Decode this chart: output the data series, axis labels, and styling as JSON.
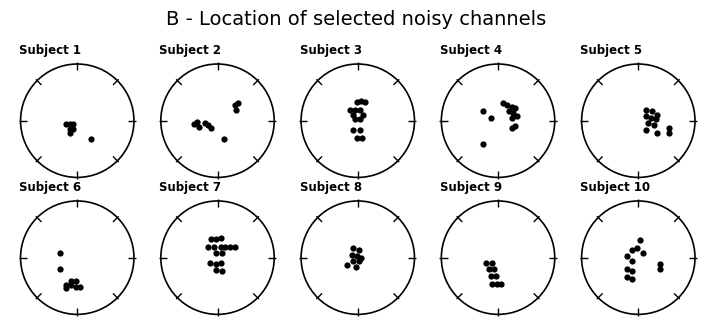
{
  "title": "B - Location of selected noisy channels",
  "title_fontsize": 14,
  "subjects": [
    "Subject 1",
    "Subject 2",
    "Subject 3",
    "Subject 4",
    "Subject 5",
    "Subject 6",
    "Subject 7",
    "Subject 8",
    "Subject 9",
    "Subject 10"
  ],
  "dots": [
    [
      [
        -0.18,
        -0.05
      ],
      [
        -0.12,
        -0.05
      ],
      [
        -0.12,
        -0.13
      ],
      [
        -0.07,
        -0.05
      ],
      [
        -0.07,
        -0.13
      ],
      [
        -0.12,
        -0.2
      ],
      [
        0.22,
        -0.3
      ]
    ],
    [
      [
        -0.38,
        -0.05
      ],
      [
        -0.33,
        -0.02
      ],
      [
        -0.3,
        -0.1
      ],
      [
        -0.2,
        -0.03
      ],
      [
        -0.15,
        -0.07
      ],
      [
        -0.1,
        -0.12
      ],
      [
        0.28,
        0.25
      ],
      [
        0.33,
        0.28
      ],
      [
        0.3,
        0.18
      ],
      [
        0.1,
        -0.3
      ]
    ],
    [
      [
        -0.02,
        0.3
      ],
      [
        0.05,
        0.32
      ],
      [
        0.12,
        0.3
      ],
      [
        -0.12,
        0.18
      ],
      [
        -0.05,
        0.18
      ],
      [
        0.03,
        0.18
      ],
      [
        0.08,
        0.1
      ],
      [
        -0.08,
        0.1
      ],
      [
        -0.05,
        0.02
      ],
      [
        0.03,
        0.02
      ],
      [
        -0.07,
        -0.15
      ],
      [
        0.03,
        -0.15
      ],
      [
        -0.02,
        -0.28
      ],
      [
        0.07,
        -0.28
      ]
    ],
    [
      [
        -0.25,
        0.15
      ],
      [
        -0.12,
        0.05
      ],
      [
        0.08,
        0.28
      ],
      [
        0.15,
        0.25
      ],
      [
        0.22,
        0.22
      ],
      [
        0.28,
        0.2
      ],
      [
        0.18,
        0.15
      ],
      [
        0.25,
        0.12
      ],
      [
        0.3,
        0.08
      ],
      [
        0.22,
        0.05
      ],
      [
        0.28,
        -0.08
      ],
      [
        0.22,
        -0.12
      ],
      [
        -0.25,
        -0.38
      ]
    ],
    [
      [
        0.12,
        0.18
      ],
      [
        0.22,
        0.15
      ],
      [
        0.3,
        0.1
      ],
      [
        0.12,
        0.08
      ],
      [
        0.2,
        0.05
      ],
      [
        0.28,
        0.02
      ],
      [
        0.15,
        -0.03
      ],
      [
        0.25,
        -0.07
      ],
      [
        0.12,
        -0.15
      ],
      [
        0.3,
        -0.2
      ],
      [
        0.5,
        -0.12
      ],
      [
        0.5,
        -0.2
      ]
    ],
    [
      [
        -0.28,
        0.08
      ],
      [
        -0.28,
        -0.18
      ],
      [
        -0.1,
        -0.38
      ],
      [
        -0.02,
        -0.38
      ],
      [
        -0.1,
        -0.45
      ],
      [
        -0.18,
        -0.45
      ],
      [
        -0.02,
        -0.48
      ],
      [
        0.05,
        -0.48
      ],
      [
        -0.18,
        -0.5
      ]
    ],
    [
      [
        -0.1,
        0.3
      ],
      [
        -0.03,
        0.3
      ],
      [
        0.05,
        0.32
      ],
      [
        -0.15,
        0.18
      ],
      [
        -0.05,
        0.18
      ],
      [
        0.05,
        0.18
      ],
      [
        0.12,
        0.18
      ],
      [
        0.2,
        0.18
      ],
      [
        0.28,
        0.18
      ],
      [
        -0.03,
        0.07
      ],
      [
        0.07,
        0.07
      ],
      [
        -0.12,
        -0.08
      ],
      [
        -0.03,
        -0.1
      ],
      [
        0.05,
        -0.08
      ],
      [
        -0.03,
        -0.2
      ],
      [
        0.07,
        -0.22
      ]
    ],
    [
      [
        -0.08,
        0.15
      ],
      [
        0.02,
        0.12
      ],
      [
        -0.1,
        0.05
      ],
      [
        -0.02,
        0.03
      ],
      [
        0.05,
        0.0
      ],
      [
        -0.07,
        -0.05
      ],
      [
        0.02,
        -0.05
      ],
      [
        -0.03,
        -0.15
      ],
      [
        -0.18,
        -0.12
      ]
    ],
    [
      [
        -0.2,
        -0.08
      ],
      [
        -0.1,
        -0.08
      ],
      [
        -0.15,
        -0.18
      ],
      [
        -0.07,
        -0.18
      ],
      [
        -0.12,
        -0.3
      ],
      [
        -0.03,
        -0.3
      ],
      [
        -0.1,
        -0.42
      ],
      [
        -0.02,
        -0.42
      ],
      [
        0.05,
        -0.42
      ]
    ],
    [
      [
        0.02,
        0.28
      ],
      [
        -0.1,
        0.12
      ],
      [
        -0.02,
        0.15
      ],
      [
        0.08,
        0.08
      ],
      [
        -0.18,
        0.02
      ],
      [
        -0.1,
        -0.05
      ],
      [
        -0.18,
        -0.18
      ],
      [
        -0.1,
        -0.22
      ],
      [
        -0.18,
        -0.32
      ],
      [
        -0.1,
        -0.35
      ],
      [
        0.35,
        -0.1
      ],
      [
        0.35,
        -0.18
      ]
    ]
  ],
  "dot_size": 4.5,
  "background_color": "#ffffff",
  "circle_color": "#000000",
  "dot_color": "#000000",
  "label_fontsize": 8.5,
  "ncols": 5,
  "nrows": 2
}
